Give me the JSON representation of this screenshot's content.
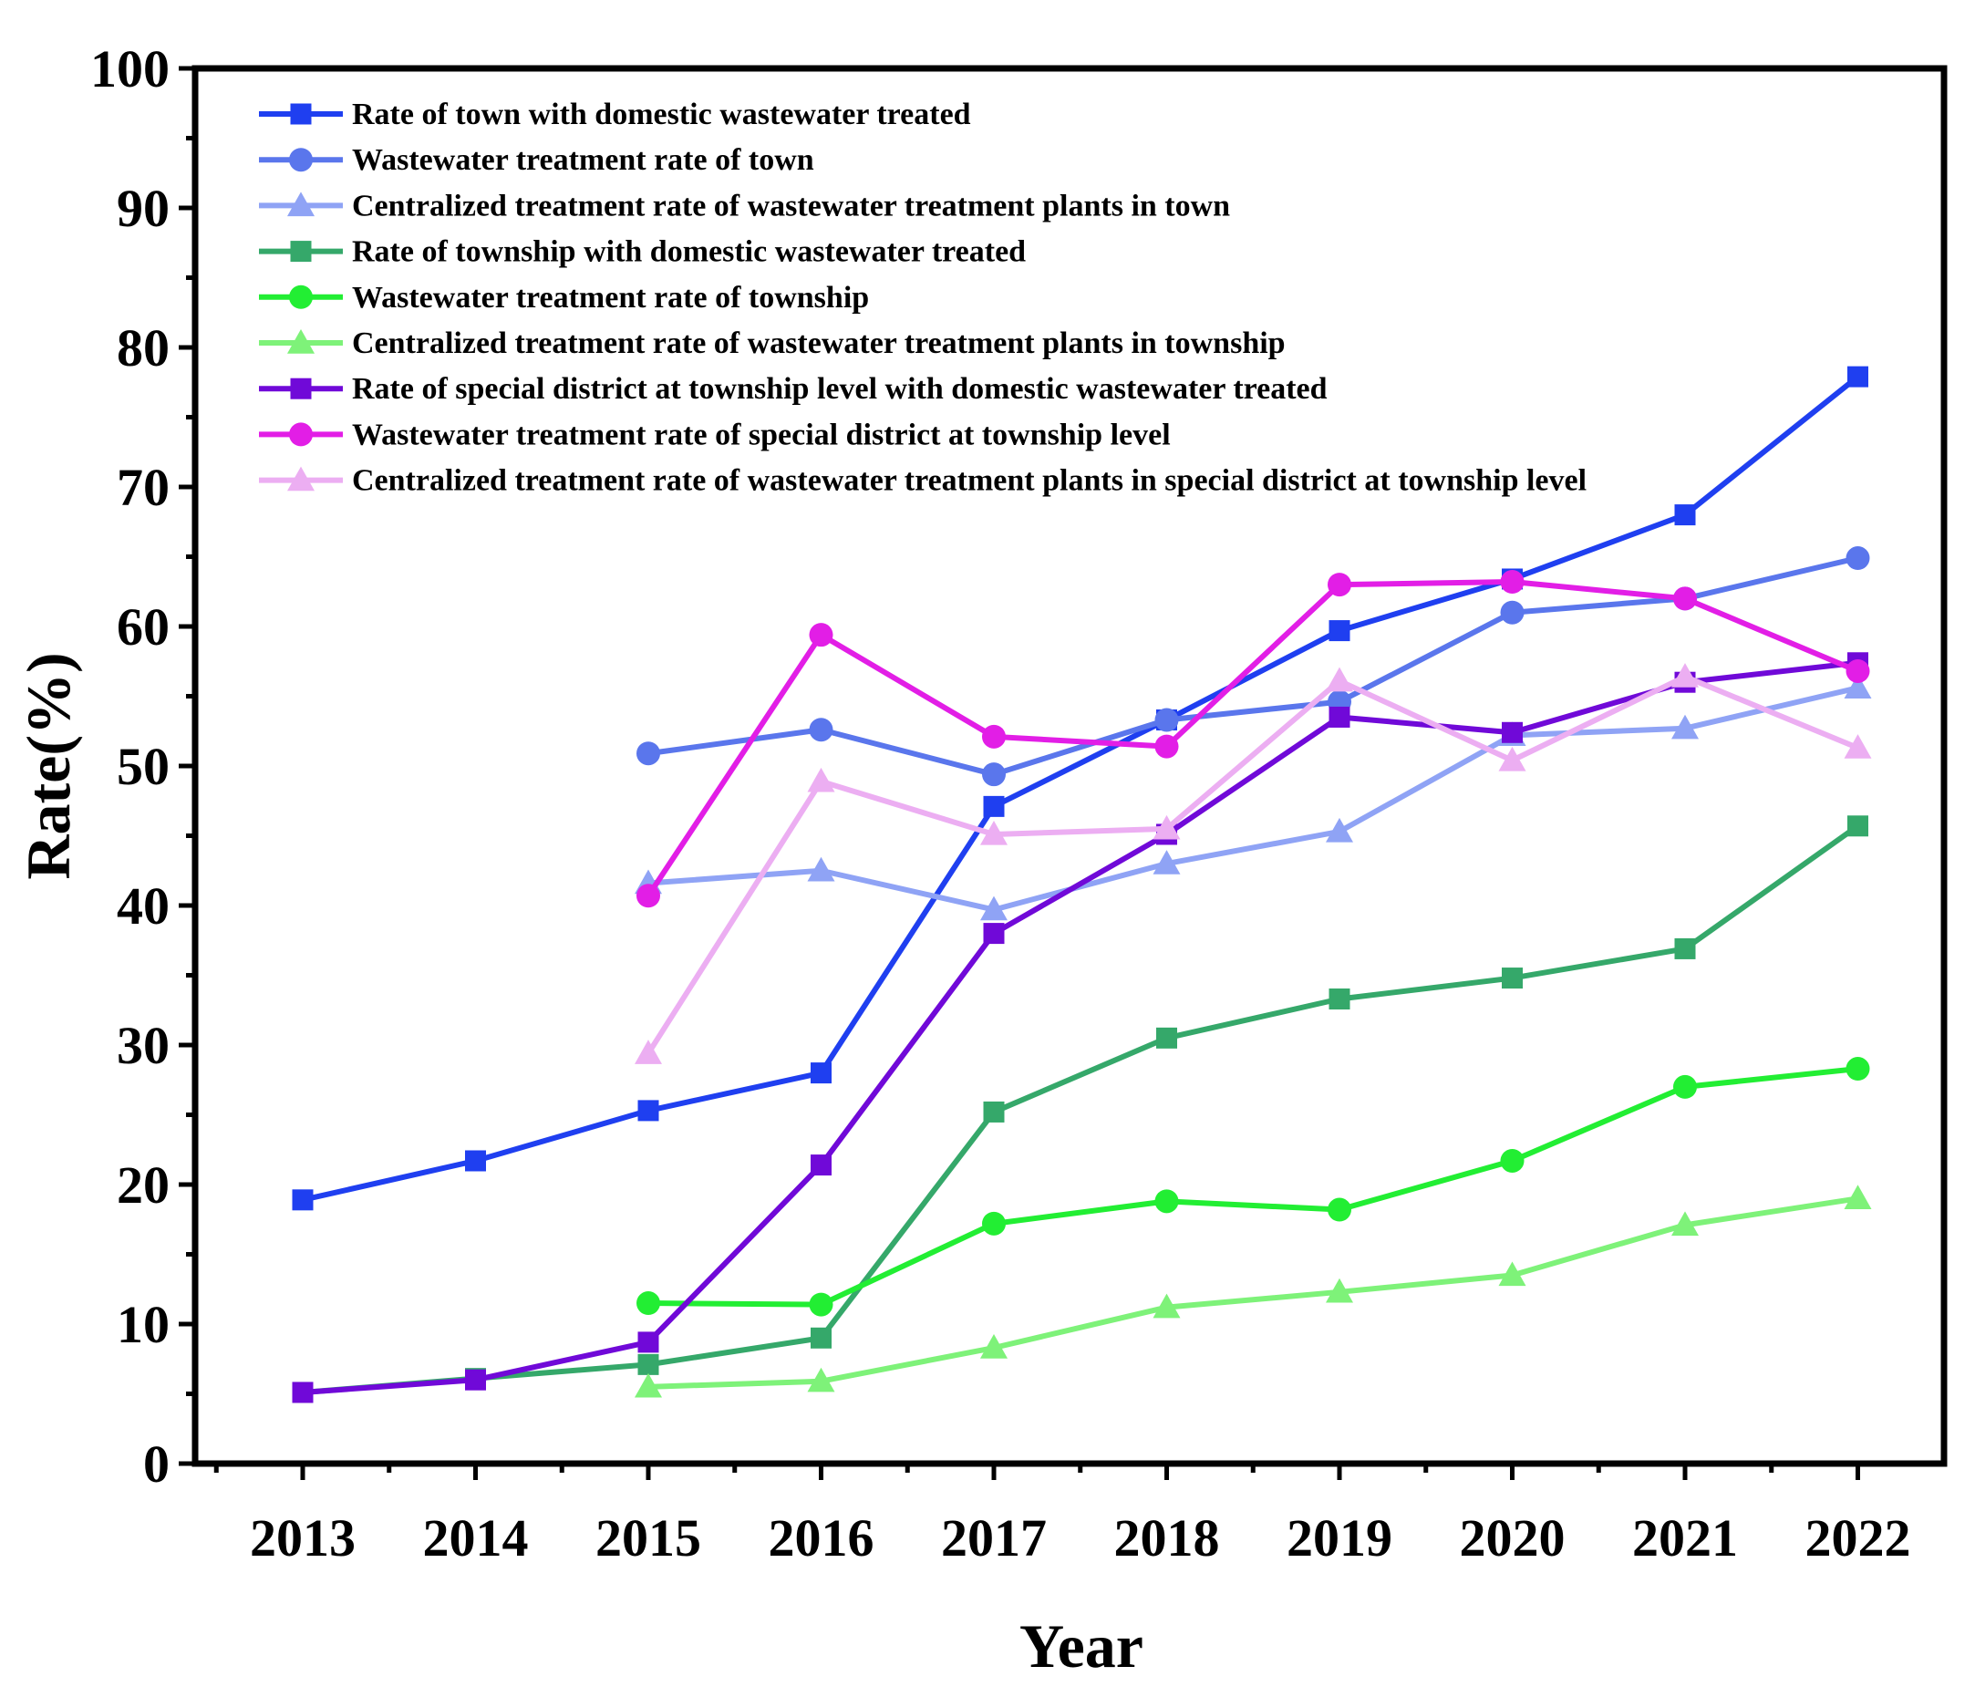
{
  "chart_data": {
    "type": "line",
    "title": "",
    "xlabel": "Year",
    "ylabel": "Rate(%)",
    "x": [
      "2013",
      "2014",
      "2015",
      "2016",
      "2017",
      "2018",
      "2019",
      "2020",
      "2021",
      "2022"
    ],
    "ylim": [
      0,
      100
    ],
    "yticks": [
      "0",
      "10",
      "20",
      "30",
      "40",
      "50",
      "60",
      "70",
      "80",
      "90",
      "100"
    ],
    "legend_position": "top-left",
    "series": [
      {
        "name": "Rate of town with domestic wastewater treated",
        "color": "#1f3ff0",
        "marker": "square",
        "values": [
          18.9,
          21.7,
          25.3,
          28.0,
          47.1,
          53.3,
          59.7,
          63.4,
          68.0,
          77.9
        ]
      },
      {
        "name": "Wastewater treatment rate of town",
        "color": "#5a76ec",
        "marker": "circle",
        "values": [
          null,
          null,
          50.9,
          52.6,
          49.4,
          53.3,
          54.6,
          61.0,
          62.0,
          64.9
        ]
      },
      {
        "name": "Centralized treatment rate of wastewater treatment plants in town",
        "color": "#8fa3f5",
        "marker": "triangle",
        "values": [
          null,
          null,
          41.6,
          42.5,
          39.7,
          43.0,
          45.3,
          52.2,
          52.7,
          55.6
        ]
      },
      {
        "name": "Rate of township with domestic wastewater treated",
        "color": "#35a86a",
        "marker": "square",
        "values": [
          5.1,
          6.1,
          7.1,
          9.0,
          25.2,
          30.5,
          33.3,
          34.8,
          36.9,
          45.7
        ]
      },
      {
        "name": "Wastewater treatment rate of township",
        "color": "#22ee33",
        "marker": "circle",
        "values": [
          null,
          null,
          11.5,
          11.4,
          17.2,
          18.8,
          18.2,
          21.7,
          27.0,
          28.3
        ]
      },
      {
        "name": "Centralized treatment rate of wastewater treatment plants in township",
        "color": "#7ef279",
        "marker": "triangle",
        "values": [
          null,
          null,
          5.5,
          5.9,
          8.3,
          11.2,
          12.3,
          13.5,
          17.1,
          19.0
        ]
      },
      {
        "name": "Rate of special district at township level with domestic wastewater treated",
        "color": "#7009d8",
        "marker": "square",
        "values": [
          5.1,
          6.0,
          8.7,
          21.4,
          38.0,
          45.1,
          53.5,
          52.4,
          56.0,
          57.4
        ]
      },
      {
        "name": "Wastewater treatment rate of special district at township level",
        "color": "#e21ee6",
        "marker": "circle",
        "values": [
          null,
          null,
          40.7,
          59.4,
          52.1,
          51.4,
          63.0,
          63.2,
          62.0,
          56.8
        ]
      },
      {
        "name": "Centralized treatment rate of wastewater treatment plants in special district at township level",
        "color": "#ecaef2",
        "marker": "triangle",
        "values": [
          null,
          null,
          29.4,
          48.9,
          45.1,
          45.5,
          56.1,
          50.4,
          56.4,
          51.3
        ]
      }
    ]
  }
}
